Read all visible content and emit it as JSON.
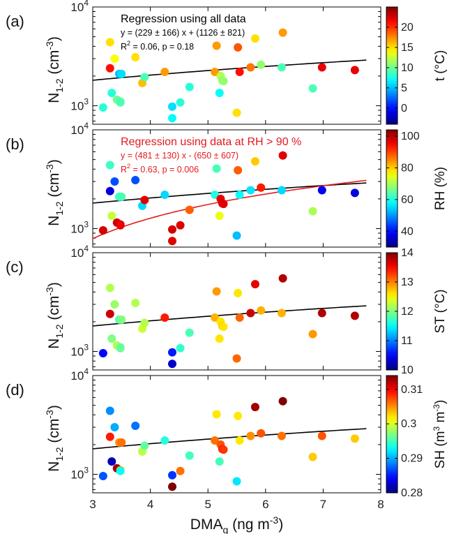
{
  "chart_data": {
    "type": "scatter",
    "shared_x": {
      "label": "DMA",
      "label_sub": "g",
      "label_unit": " (ng m",
      "label_unit_sup": "-3",
      "label_end": ")",
      "xlim": [
        3,
        8
      ],
      "ticks": [
        "3",
        "4",
        "5",
        "6",
        "7",
        "8"
      ]
    },
    "y_label": {
      "main": "N",
      "sub": "1-2",
      "unit": " (cm",
      "sup": "-3",
      "end": ")"
    },
    "y_tick_labels": {
      "low": "10",
      "low_sup": "3",
      "high": "10",
      "high_sup": "4"
    },
    "ylim": [
      650,
      10000
    ],
    "yscale": "log",
    "x": [
      3.18,
      3.3,
      3.3,
      3.33,
      3.38,
      3.42,
      3.46,
      3.48,
      3.48,
      3.5,
      3.74,
      3.86,
      3.9,
      4.25,
      4.38,
      4.38,
      4.52,
      4.68,
      5.12,
      5.15,
      5.2,
      5.22,
      5.25,
      5.27,
      5.5,
      5.52,
      5.55,
      5.74,
      5.82,
      5.92,
      6.28,
      6.3,
      6.82,
      6.98,
      7.55
    ],
    "y": [
      960,
      2400,
      4400,
      1350,
      3000,
      1150,
      2100,
      1100,
      1080,
      2100,
      3100,
      1700,
      1950,
      2200,
      750,
      980,
      1080,
      1550,
      2200,
      4050,
      1350,
      2000,
      1800,
      1780,
      850,
      3900,
      2200,
      2450,
      4800,
      2600,
      2450,
      5500,
      1500,
      2450,
      2300
    ],
    "regression_all": {
      "slope": 229,
      "intercept": 1126
    },
    "regression_rh": {
      "slope": 481,
      "intercept": -650
    },
    "panels": [
      {
        "label": "(a)",
        "colorbar_title": "t (°C)",
        "colorbar_ticks": [
          "0",
          "5",
          "10",
          "15",
          "20"
        ],
        "clim": [
          -4,
          25
        ],
        "colormap": "jet",
        "color_values": [
          8,
          21,
          15,
          8,
          14,
          10,
          5,
          9,
          9,
          6,
          15,
          16,
          9,
          17,
          7,
          6,
          8,
          8,
          17,
          17,
          7,
          12,
          11,
          11,
          15,
          19,
          21,
          18,
          15,
          11,
          9,
          17,
          9,
          22,
          22
        ],
        "annotation": {
          "title": "Regression using all data",
          "equation": "y = (229 ± 166) x + (1126 ± 821)",
          "r2_prefix": "R",
          "r2_sup": "2",
          "r2_suffix": " = 0.06, p = 0.18",
          "color": "#000000"
        }
      },
      {
        "label": "(b)",
        "colorbar_title": "RH (%)",
        "colorbar_ticks": [
          "40",
          "60",
          "80",
          "100"
        ],
        "clim": [
          30,
          104
        ],
        "colormap": "jet",
        "color_values": [
          98,
          37,
          62,
          72,
          45,
          98,
          62,
          98,
          96,
          63,
          45,
          55,
          97,
          55,
          97,
          98,
          97,
          88,
          60,
          63,
          75,
          96,
          97,
          97,
          53,
          88,
          58,
          56,
          80,
          93,
          55,
          97,
          70,
          38,
          37
        ],
        "annotation": {
          "title": "Regression using data at RH > 90 %",
          "equation": "y = (481 ± 130) x - (650 ± 607)",
          "r2_prefix": "R",
          "r2_sup": "2",
          "r2_suffix": " = 0.63, p = 0.006",
          "color": "#e41a1c"
        }
      },
      {
        "label": "(c)",
        "colorbar_title": "ST (°C)",
        "colorbar_ticks": [
          "10",
          "11",
          "12",
          "13",
          "14"
        ],
        "clim": [
          10,
          14
        ],
        "colormap": "jet",
        "color_values": [
          10.5,
          13.7,
          12.2,
          12.0,
          12.1,
          12.2,
          11.8,
          11.9,
          11.9,
          12.0,
          12.2,
          12.3,
          12.2,
          13.4,
          10.3,
          10.6,
          11.7,
          11.8,
          12.8,
          12.9,
          12.6,
          12.6,
          12.7,
          12.6,
          13.1,
          12.6,
          13.1,
          13.7,
          13.6,
          12.8,
          12.8,
          13.8,
          12.9,
          13.8,
          13.8
        ],
        "annotation": null
      },
      {
        "label": "(d)",
        "colorbar_title_main": "SH (m",
        "colorbar_title_sup1": "3",
        "colorbar_title_mid": " m",
        "colorbar_title_sup2": "-3",
        "colorbar_title_end": ")",
        "colorbar_ticks": [
          "0.28",
          "0.29",
          "0.3",
          "0.31"
        ],
        "clim": [
          0.28,
          0.314
        ],
        "colormap": "jet",
        "color_values": [
          0.287,
          0.309,
          0.289,
          0.282,
          0.29,
          0.313,
          0.305,
          0.304,
          0.293,
          0.306,
          0.288,
          0.299,
          0.296,
          0.294,
          0.314,
          0.286,
          0.306,
          0.295,
          0.306,
          0.302,
          0.295,
          0.307,
          0.309,
          0.308,
          0.292,
          0.302,
          0.302,
          0.305,
          0.313,
          0.307,
          0.306,
          0.314,
          0.303,
          0.307,
          0.303
        ],
        "annotation": null
      }
    ]
  }
}
